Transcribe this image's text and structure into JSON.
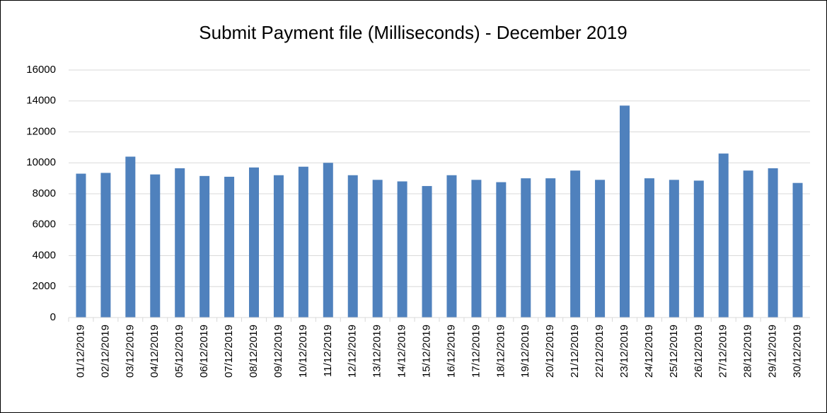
{
  "chart_data": {
    "type": "bar",
    "title": "Submit Payment file (Milliseconds) - December 2019",
    "categories": [
      "01/12/2019",
      "02/12/2019",
      "03/12/2019",
      "04/12/2019",
      "05/12/2019",
      "06/12/2019",
      "07/12/2019",
      "08/12/2019",
      "09/12/2019",
      "10/12/2019",
      "11/12/2019",
      "12/12/2019",
      "13/12/2019",
      "14/12/2019",
      "15/12/2019",
      "16/12/2019",
      "17/12/2019",
      "18/12/2019",
      "19/12/2019",
      "20/12/2019",
      "21/12/2019",
      "22/12/2019",
      "23/12/2019",
      "24/12/2019",
      "25/12/2019",
      "26/12/2019",
      "27/12/2019",
      "28/12/2019",
      "29/12/2019",
      "30/12/2019"
    ],
    "values": [
      9300,
      9350,
      10400,
      9250,
      9650,
      9150,
      9100,
      9700,
      9200,
      9750,
      10000,
      9200,
      8900,
      8800,
      8500,
      9200,
      8900,
      8750,
      9000,
      9000,
      9500,
      8900,
      13700,
      9000,
      8900,
      8850,
      10600,
      9500,
      9650,
      8700
    ],
    "color": "#4f81bd",
    "ylim": [
      0,
      16000
    ],
    "yticks": [
      0,
      2000,
      4000,
      6000,
      8000,
      10000,
      12000,
      14000,
      16000
    ],
    "grid": true
  }
}
